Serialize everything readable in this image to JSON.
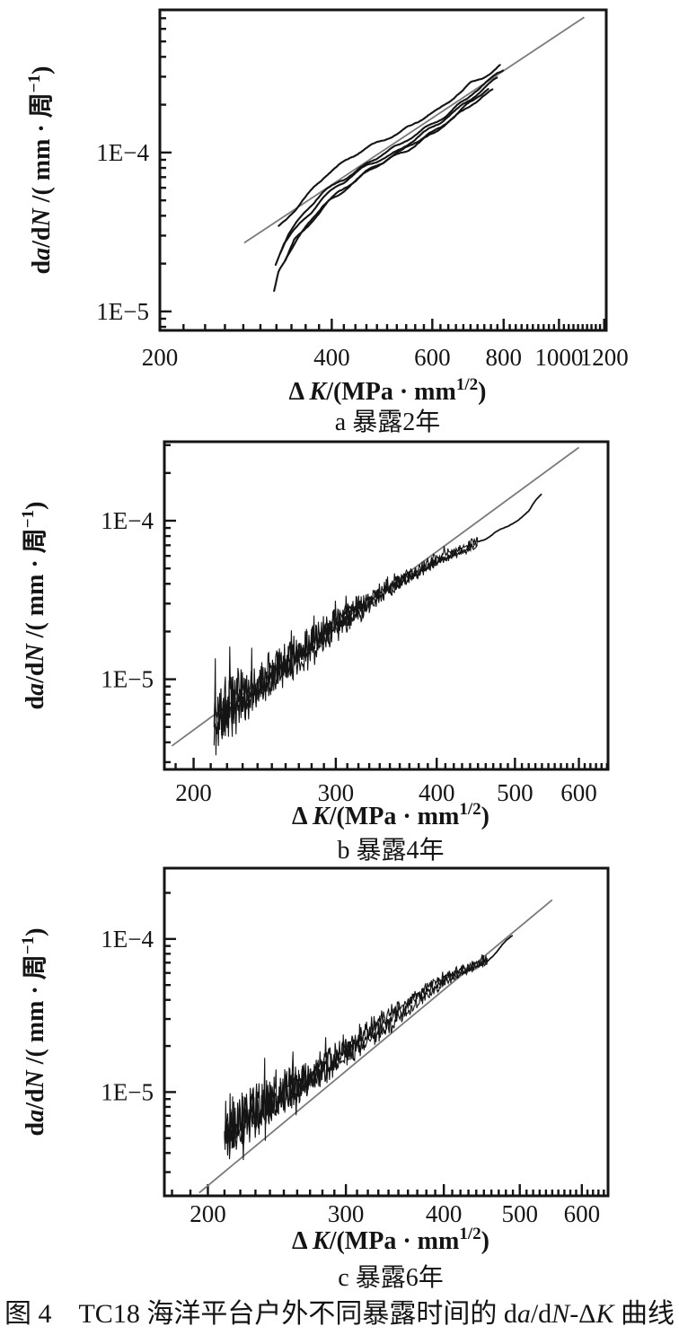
{
  "figure": {
    "number": "图 4",
    "caption_parts": [
      {
        "t": "图 4　TC18 海洋平台户外不同暴露时间的 d"
      },
      {
        "t": "a",
        "italic": true
      },
      {
        "t": "/d"
      },
      {
        "t": "N",
        "italic": true
      },
      {
        "t": "-Δ"
      },
      {
        "t": "K",
        "italic": true
      },
      {
        "t": " 曲线"
      }
    ],
    "ink_color": "#141414",
    "fit_line_color": "#7a7a7a",
    "background": "#ffffff"
  },
  "chart_data": [
    {
      "id": "a",
      "type": "line",
      "caption": "a 暴露2年",
      "x_axis": {
        "scale": "log",
        "min": 200,
        "max": 1210,
        "ticks": [
          200,
          400,
          600,
          800,
          1000,
          1200
        ],
        "tick_labels": [
          "200",
          "400",
          "600",
          "800",
          "1000",
          "1200"
        ],
        "minor_step": 20,
        "label_parts": [
          {
            "t": "Δ "
          },
          {
            "t": "K",
            "italic": true
          },
          {
            "t": "/(MPa · mm"
          },
          {
            "t": "1/2",
            "sup": true
          },
          {
            "t": ")"
          }
        ]
      },
      "y_axis": {
        "scale": "log",
        "min": 7.6e-06,
        "max": 0.00079,
        "ticks": [
          1e-05,
          0.0001
        ],
        "tick_labels": [
          "1E−5",
          "1E−4"
        ],
        "label_parts": [
          {
            "t": "d"
          },
          {
            "t": "a",
            "italic": true
          },
          {
            "t": "/d"
          },
          {
            "t": "N",
            "italic": true
          },
          {
            "t": " /( mm · 周"
          },
          {
            "t": "−1",
            "sup": true
          },
          {
            "t": ")"
          }
        ]
      },
      "fit_line": {
        "name": "paris-law-fit",
        "points": [
          [
            281,
            2.7e-05
          ],
          [
            1107,
            0.00071
          ]
        ]
      },
      "series": [
        {
          "name": "specimen-1",
          "style": "smooth",
          "noise": 0.013,
          "points": [
            [
              323,
              3.4e-05
            ],
            [
              340,
              4.2e-05
            ],
            [
              386,
              6.8e-05
            ],
            [
              460,
              0.000105
            ],
            [
              530,
              0.000135
            ],
            [
              620,
              0.000185
            ],
            [
              700,
              0.00027
            ],
            [
              790,
              0.00035
            ]
          ]
        },
        {
          "name": "specimen-2",
          "style": "smooth",
          "noise": 0.013,
          "points": [
            [
              325,
              2.4e-05
            ],
            [
              336,
              3.1e-05
            ],
            [
              386,
              5.6e-05
            ],
            [
              460,
              8.6e-05
            ],
            [
              530,
              0.000112
            ],
            [
              620,
              0.00016
            ],
            [
              700,
              0.00023
            ],
            [
              800,
              0.00033
            ]
          ]
        },
        {
          "name": "specimen-3",
          "style": "smooth",
          "noise": 0.014,
          "points": [
            [
              319,
              1.95e-05
            ],
            [
              330,
              2.7e-05
            ],
            [
              386,
              5.1e-05
            ],
            [
              460,
              8e-05
            ],
            [
              530,
              0.000105
            ],
            [
              620,
              0.00015
            ],
            [
              700,
              0.000215
            ],
            [
              780,
              0.00029
            ]
          ]
        },
        {
          "name": "specimen-4",
          "style": "smooth",
          "noise": 0.015,
          "points": [
            [
              317,
              1.35e-05
            ],
            [
              323,
              1.85e-05
            ],
            [
              336,
              2.4e-05
            ],
            [
              386,
              4.6e-05
            ],
            [
              460,
              7.5e-05
            ],
            [
              530,
              0.0001
            ],
            [
              620,
              0.000145
            ],
            [
              700,
              0.000205
            ],
            [
              755,
              0.00025
            ]
          ]
        },
        {
          "name": "specimen-5",
          "style": "smooth",
          "noise": 0.013,
          "points": [
            [
              332,
              2.1e-05
            ],
            [
              344,
              2.8e-05
            ],
            [
              395,
              5e-05
            ],
            [
              470,
              7.9e-05
            ],
            [
              540,
              0.000105
            ],
            [
              630,
              0.00015
            ],
            [
              710,
              0.00021
            ],
            [
              765,
              0.000255
            ]
          ]
        }
      ]
    },
    {
      "id": "b",
      "type": "line",
      "caption": "b 暴露4年",
      "x_axis": {
        "scale": "log",
        "min": 184,
        "max": 652,
        "ticks": [
          200,
          300,
          400,
          500,
          600
        ],
        "tick_labels": [
          "200",
          "300",
          "400",
          "500",
          "600"
        ],
        "minor_step": 10,
        "label_parts": [
          {
            "t": "Δ "
          },
          {
            "t": "K",
            "italic": true
          },
          {
            "t": "/(MPa · mm"
          },
          {
            "t": "1/2",
            "sup": true
          },
          {
            "t": ")"
          }
        ]
      },
      "y_axis": {
        "scale": "log",
        "min": 2.7e-06,
        "max": 0.000315,
        "ticks": [
          1e-05,
          0.0001
        ],
        "tick_labels": [
          "1E−5",
          "1E−4"
        ],
        "label_parts": [
          {
            "t": "d"
          },
          {
            "t": "a",
            "italic": true
          },
          {
            "t": "/d"
          },
          {
            "t": "N",
            "italic": true
          },
          {
            "t": " /( mm · 周"
          },
          {
            "t": "−1",
            "sup": true
          },
          {
            "t": ")"
          }
        ]
      },
      "fit_line": {
        "name": "paris-law-fit",
        "points": [
          [
            188,
            3.8e-06
          ],
          [
            600,
            0.00029
          ]
        ]
      },
      "series": [
        {
          "name": "noisy-band",
          "style": "band",
          "traces": 3,
          "noise": [
            0.2,
            0.025
          ],
          "points": [
            [
              212,
              5.5e-06
            ],
            [
              250,
              1.05e-05
            ],
            [
              300,
              2.1e-05
            ],
            [
              350,
              3.6e-05
            ],
            [
              400,
              5.6e-05
            ],
            [
              450,
              7.5e-05
            ]
          ]
        },
        {
          "name": "upper-tail",
          "style": "smooth",
          "noise": 0.014,
          "points": [
            [
              450,
              7.5e-05
            ],
            [
              470,
              8.3e-05
            ],
            [
              500,
              0.0001
            ],
            [
              520,
              0.000113
            ],
            [
              540,
              0.00015
            ]
          ]
        }
      ]
    },
    {
      "id": "c",
      "type": "line",
      "caption": "c 暴露6年",
      "x_axis": {
        "scale": "log",
        "min": 176,
        "max": 648,
        "ticks": [
          200,
          300,
          400,
          500,
          600
        ],
        "tick_labels": [
          "200",
          "300",
          "400",
          "500",
          "600"
        ],
        "minor_step": 10,
        "label_parts": [
          {
            "t": "Δ "
          },
          {
            "t": "K",
            "italic": true
          },
          {
            "t": "/(MPa · mm"
          },
          {
            "t": "1/2",
            "sup": true
          },
          {
            "t": ")"
          }
        ]
      },
      "y_axis": {
        "scale": "log",
        "min": 2.1e-06,
        "max": 0.00029,
        "ticks": [
          1e-05,
          0.0001
        ],
        "tick_labels": [
          "1E−5",
          "1E−4"
        ],
        "label_parts": [
          {
            "t": "d"
          },
          {
            "t": "a",
            "italic": true
          },
          {
            "t": "/d"
          },
          {
            "t": "N",
            "italic": true
          },
          {
            "t": " /( mm · 周"
          },
          {
            "t": "−1",
            "sup": true
          },
          {
            "t": ")"
          }
        ]
      },
      "fit_line": {
        "name": "paris-law-fit",
        "points": [
          [
            195,
            2.2e-06
          ],
          [
            550,
            0.00018
          ]
        ]
      },
      "series": [
        {
          "name": "noisy-band",
          "style": "band",
          "traces": 3,
          "noise": [
            0.19,
            0.028
          ],
          "points": [
            [
              210,
              5e-06
            ],
            [
              250,
              9.5e-06
            ],
            [
              300,
              1.85e-05
            ],
            [
              350,
              3.2e-05
            ],
            [
              400,
              5.2e-05
            ],
            [
              455,
              7.2e-05
            ]
          ]
        },
        {
          "name": "upper-tail",
          "style": "smooth",
          "noise": 0.016,
          "points": [
            [
              455,
              7.2e-05
            ],
            [
              468,
              8.3e-05
            ],
            [
              480,
              9.4e-05
            ],
            [
              490,
              0.000105
            ]
          ]
        }
      ]
    }
  ]
}
